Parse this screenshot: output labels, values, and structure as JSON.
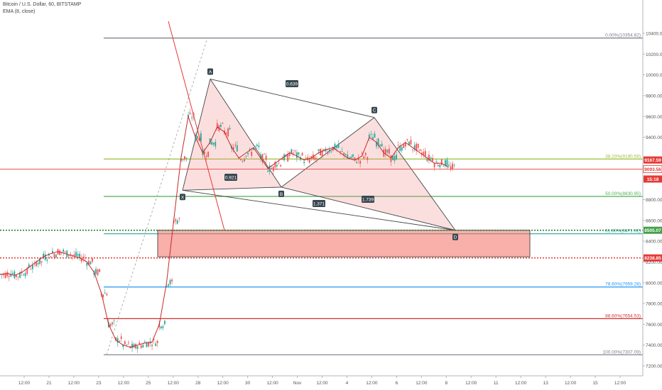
{
  "header": {
    "symbol_title": "Bitcoin / U.S. Dollar, 60, BITSTAMP",
    "indicator": "EMA (8, close)"
  },
  "chart_data": {
    "type": "candlestick",
    "y_axis": {
      "ticks": [
        10400,
        10200,
        10000,
        9800,
        9600,
        9400,
        9200,
        9000,
        8800,
        8600,
        8400,
        8200,
        8000,
        7800,
        7600,
        7400,
        7200
      ],
      "labels": [
        "10400.00",
        "10200.00",
        "10000.00",
        "9800.00",
        "9600.00",
        "9400.00",
        "9200.00",
        "9000.00",
        "8800.00",
        "8600.00",
        "8400.00",
        "8200.00",
        "8000.00",
        "7800.00",
        "7600.00",
        "7400.00",
        "7200.00"
      ]
    },
    "x_axis": {
      "labels": [
        "12:00",
        "21",
        "12:00",
        "23",
        "12:00",
        "25",
        "12:00",
        "28",
        "12:00",
        "30",
        "12:00",
        "Nov",
        "12:00",
        "4",
        "12:00",
        "6",
        "12:00",
        "8",
        "12:00",
        "11",
        "12:00",
        "13",
        "12:00",
        "15",
        "12:00"
      ]
    },
    "fib_levels": [
      {
        "label": "0.00%(10354.82)",
        "value": 10354.82,
        "color": "#787b86"
      },
      {
        "label": "38.20%(9190.59)",
        "value": 9190.59,
        "color": "#9bbf3a"
      },
      {
        "label": "50.00%(8830.95)",
        "value": 8830.95,
        "color": "#4caf50"
      },
      {
        "label": "61.80%(8471.32)",
        "value": 8471.32,
        "color": "#26a69a"
      },
      {
        "label": "78.60%(7959.28)",
        "value": 7959.28,
        "color": "#2196f3"
      },
      {
        "label": "88.60%(7654.53)",
        "value": 7654.53,
        "color": "#d32f2f"
      },
      {
        "label": "100.00%(7307.09)",
        "value": 7307.09,
        "color": "#787b86"
      }
    ],
    "price_tags": [
      {
        "text": "9167.59",
        "value": 9167.59,
        "color": "#e53935"
      },
      {
        "text": "9093.56",
        "value": 9093.56,
        "color": "#ffffff",
        "text_color": "#e53935"
      },
      {
        "text": "15:18",
        "value": 9000,
        "color": "#e53935"
      },
      {
        "text": "8505.07",
        "value": 8505.07,
        "color": "#43a047"
      },
      {
        "text": "8238.85",
        "value": 8238.85,
        "color": "#e53935"
      }
    ],
    "horizontal_lines": [
      {
        "value": 9093.56,
        "color": "#ef5350",
        "style": "solid"
      },
      {
        "value": 8505.07,
        "color": "#2e7d32",
        "style": "dotted"
      },
      {
        "value": 8238.85,
        "color": "#e53935",
        "style": "dotted"
      }
    ],
    "harmonic_points": [
      {
        "label": "X",
        "value": 8890
      },
      {
        "label": "A",
        "value": 9960
      },
      {
        "label": "B",
        "value": 8920
      },
      {
        "label": "C",
        "value": 9590
      },
      {
        "label": "D",
        "value": 8505
      }
    ],
    "harmonic_ratios": [
      {
        "text": "0.639",
        "between": "A-C"
      },
      {
        "text": "0.921",
        "between": "X-B"
      },
      {
        "text": "1.371",
        "between": "X-D"
      },
      {
        "text": "1.739",
        "between": "B-D"
      }
    ],
    "zone": {
      "top": 8505,
      "bottom": 8250
    },
    "series": [
      {
        "name": "EMA (8, close)",
        "values": [
          8080,
          8090,
          8070,
          8100,
          8150,
          8200,
          8250,
          8280,
          8300,
          8280,
          8260,
          8240,
          8200,
          8100,
          7900,
          7600,
          7450,
          7400,
          7380,
          7400,
          7420,
          7430,
          7600,
          8000,
          8600,
          9200,
          9600,
          9400,
          9250,
          9350,
          9500,
          9450,
          9300,
          9200,
          9250,
          9300,
          9200,
          9100,
          9150,
          9200,
          9250,
          9220,
          9180,
          9200,
          9250,
          9280,
          9300,
          9250,
          9200,
          9180,
          9220,
          9400,
          9350,
          9250,
          9200,
          9300,
          9350,
          9300,
          9250,
          9200,
          9150,
          9150,
          9110
        ]
      }
    ]
  }
}
